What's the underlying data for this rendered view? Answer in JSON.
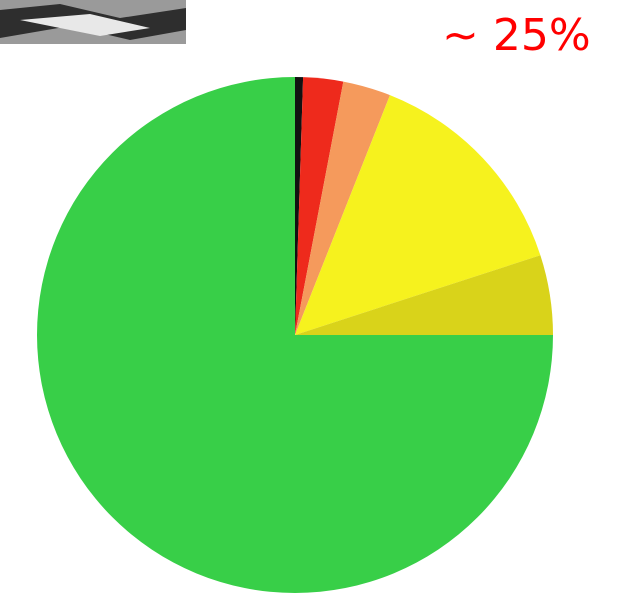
{
  "chart_data": {
    "type": "pie",
    "annotation": "~ 25%",
    "values": [
      0.5,
      2.5,
      3,
      14,
      5,
      75
    ],
    "colors": [
      "#111111",
      "#ee2a1c",
      "#f59a5c",
      "#f6f21e",
      "#d9d31a",
      "#38cf48"
    ],
    "start_angle": 0,
    "direction": "clockwise"
  }
}
